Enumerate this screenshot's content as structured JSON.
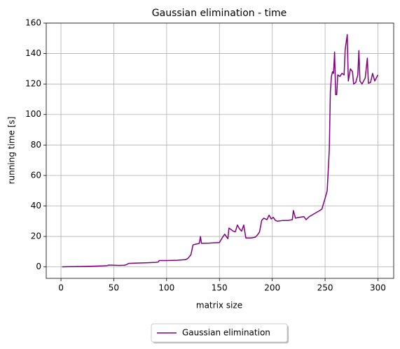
{
  "chart_data": {
    "type": "line",
    "title": "Gaussian elimination - time",
    "x_label": "matrix size",
    "y_label": "running time [s]",
    "xlim": [
      -13.95,
      314.95
    ],
    "ylim": [
      -7.5,
      160
    ],
    "xticks": [
      0,
      50,
      100,
      150,
      200,
      250,
      300
    ],
    "yticks": [
      0,
      20,
      40,
      60,
      80,
      100,
      120,
      140,
      160
    ],
    "grid": true,
    "legend": "lower center",
    "x": [
      1,
      10,
      20,
      30,
      40,
      44,
      45,
      55,
      60,
      62,
      64,
      70,
      80,
      90,
      92,
      93,
      100,
      110,
      118,
      120,
      123,
      125,
      128,
      131,
      132,
      133,
      140,
      150,
      153,
      155,
      157,
      158,
      159,
      161,
      163,
      165,
      167,
      169,
      171,
      173,
      175,
      180,
      184,
      186,
      188,
      190,
      192,
      195,
      197,
      199,
      201,
      203,
      205,
      210,
      215,
      219,
      220,
      222,
      225,
      230,
      232,
      235,
      240,
      245,
      247,
      250,
      252,
      254,
      255,
      256,
      257,
      258,
      259,
      260,
      261,
      262,
      264,
      266,
      268,
      269,
      271,
      272,
      274,
      276,
      277,
      279,
      281,
      282,
      283,
      285,
      288,
      290,
      291,
      293,
      295,
      297,
      300
    ],
    "series": [
      {
        "name": "Gaussian elimination",
        "color": "#800080",
        "values": [
          0.1,
          0.2,
          0.3,
          0.5,
          0.7,
          0.9,
          1.2,
          1.0,
          1.1,
          1.5,
          2.3,
          2.5,
          2.7,
          3.0,
          3.2,
          4.2,
          4.2,
          4.4,
          4.8,
          5.5,
          8,
          14.5,
          15.0,
          15.5,
          20,
          15.5,
          15.6,
          16,
          19.5,
          21.5,
          19.5,
          18.5,
          25.5,
          24.5,
          23.5,
          23,
          27.5,
          25,
          23.5,
          27.5,
          19,
          19,
          19.5,
          21,
          23,
          30.5,
          32,
          31,
          34,
          31.5,
          32.5,
          30.5,
          30,
          30.5,
          30.5,
          31,
          37,
          32,
          32.5,
          33,
          31,
          33,
          35,
          37,
          38,
          45,
          50,
          77,
          115,
          125,
          128,
          127,
          141,
          113,
          113,
          126,
          125,
          127,
          126,
          142.5,
          152.5,
          122,
          130,
          128,
          120,
          121,
          126,
          142,
          122,
          120,
          124,
          137,
          120.5,
          121,
          127,
          122,
          126
        ]
      }
    ]
  }
}
